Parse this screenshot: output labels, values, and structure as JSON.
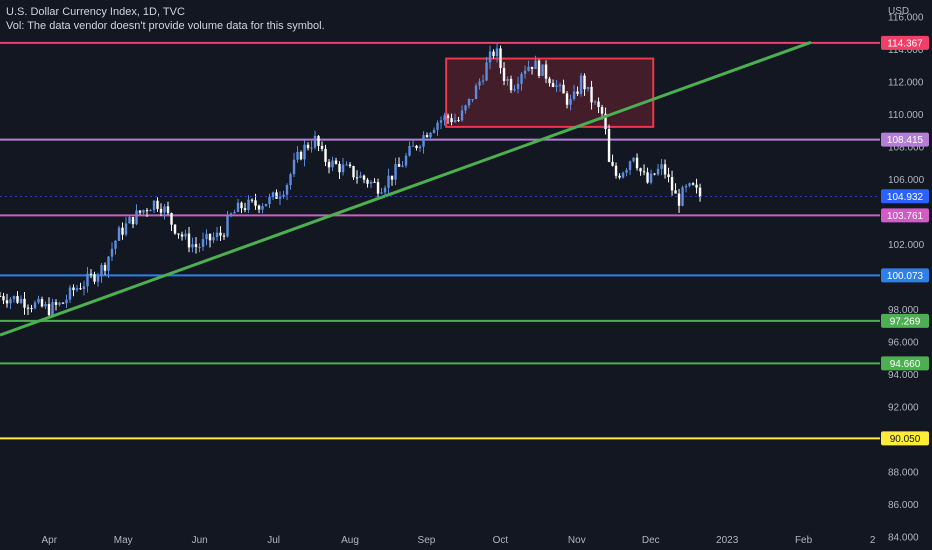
{
  "header": {
    "title": "U.S. Dollar Currency Index, 1D, TVC",
    "vol_note": "Vol: The data vendor doesn't provide volume data for this symbol."
  },
  "colors": {
    "background": "#131722",
    "candle_up": "#5b8ee0",
    "candle_down": "#ffffff",
    "trendline": "#4caf50",
    "box_border": "#f23645",
    "box_fill": "rgba(242,54,69,0.22)"
  },
  "chart_data": {
    "type": "candlestick",
    "currency_label": "USD",
    "ylim": [
      83.8,
      117.0
    ],
    "y_ticks": [
      84,
      86,
      88,
      90,
      92,
      94,
      96,
      98,
      100,
      102,
      104,
      106,
      108,
      110,
      112,
      114,
      116
    ],
    "x_ticks": [
      {
        "label": "Apr",
        "day": 20
      },
      {
        "label": "May",
        "day": 50
      },
      {
        "label": "Jun",
        "day": 81
      },
      {
        "label": "Jul",
        "day": 111
      },
      {
        "label": "Aug",
        "day": 142
      },
      {
        "label": "Sep",
        "day": 173
      },
      {
        "label": "Oct",
        "day": 203
      },
      {
        "label": "Nov",
        "day": 234
      },
      {
        "label": "Dec",
        "day": 264
      },
      {
        "label": "2023",
        "day": 295
      },
      {
        "label": "Feb",
        "day": 326
      },
      {
        "label": "2",
        "day": 354
      }
    ],
    "x_domain_days": [
      0,
      357
    ],
    "last_price": 104.932,
    "price_path": [
      [
        0,
        98.8
      ],
      [
        8,
        98.6
      ],
      [
        15,
        98.2
      ],
      [
        20,
        98.0
      ],
      [
        25,
        98.3
      ],
      [
        30,
        99.2
      ],
      [
        36,
        99.8
      ],
      [
        42,
        100.6
      ],
      [
        48,
        102.6
      ],
      [
        54,
        103.6
      ],
      [
        60,
        104.3
      ],
      [
        63,
        104.6
      ],
      [
        66,
        104.3
      ],
      [
        70,
        103.2
      ],
      [
        75,
        102.3
      ],
      [
        80,
        101.8
      ],
      [
        84,
        102.2
      ],
      [
        90,
        102.6
      ],
      [
        94,
        103.8
      ],
      [
        98,
        104.3
      ],
      [
        103,
        104.4
      ],
      [
        110,
        104.7
      ],
      [
        116,
        105.6
      ],
      [
        120,
        107.1
      ],
      [
        124,
        108.0
      ],
      [
        128,
        108.4
      ],
      [
        131,
        107.3
      ],
      [
        135,
        106.9
      ],
      [
        140,
        106.6
      ],
      [
        145,
        106.2
      ],
      [
        150,
        105.8
      ],
      [
        154,
        105.5
      ],
      [
        158,
        106.1
      ],
      [
        162,
        106.7
      ],
      [
        166,
        107.6
      ],
      [
        170,
        108.3
      ],
      [
        173,
        108.9
      ],
      [
        177,
        109.5
      ],
      [
        181,
        109.8
      ],
      [
        186,
        109.6
      ],
      [
        190,
        110.6
      ],
      [
        194,
        111.8
      ],
      [
        198,
        113.2
      ],
      [
        201,
        114.0
      ],
      [
        204,
        112.4
      ],
      [
        208,
        111.7
      ],
      [
        212,
        112.8
      ],
      [
        216,
        113.1
      ],
      [
        220,
        112.6
      ],
      [
        224,
        112.1
      ],
      [
        228,
        111.2
      ],
      [
        232,
        110.6
      ],
      [
        236,
        112.2
      ],
      [
        238,
        111.4
      ],
      [
        241,
        110.6
      ],
      [
        245,
        109.8
      ],
      [
        247,
        106.9
      ],
      [
        250,
        106.2
      ],
      [
        254,
        106.8
      ],
      [
        257,
        107.6
      ],
      [
        260,
        106.4
      ],
      [
        263,
        105.7
      ],
      [
        266,
        106.4
      ],
      [
        269,
        106.7
      ],
      [
        272,
        105.6
      ],
      [
        275,
        104.6
      ],
      [
        278,
        105.3
      ],
      [
        281,
        105.4
      ],
      [
        284,
        104.93
      ]
    ],
    "horizontal_levels": [
      {
        "value": 114.367,
        "label": "114.367",
        "color": "#f23f6a"
      },
      {
        "value": 108.415,
        "label": "108.415",
        "color": "#b57ed6"
      },
      {
        "value": 103.761,
        "label": "103.761",
        "color": "#d45bc4"
      },
      {
        "value": 100.073,
        "label": "100.073",
        "color": "#2f7fe8"
      },
      {
        "value": 97.269,
        "label": "97.269",
        "color": "#4caf50"
      },
      {
        "value": 94.66,
        "label": "94.660",
        "color": "#4caf50"
      },
      {
        "value": 90.05,
        "label": "90.050",
        "color": "#ffeb3b"
      }
    ],
    "trendline": {
      "from": {
        "day": 0,
        "value": 96.4
      },
      "to": {
        "day": 329,
        "value": 114.4
      }
    },
    "box": {
      "x0_day": 181,
      "x1_day": 265,
      "y_top": 113.4,
      "y_bottom": 109.2
    }
  }
}
